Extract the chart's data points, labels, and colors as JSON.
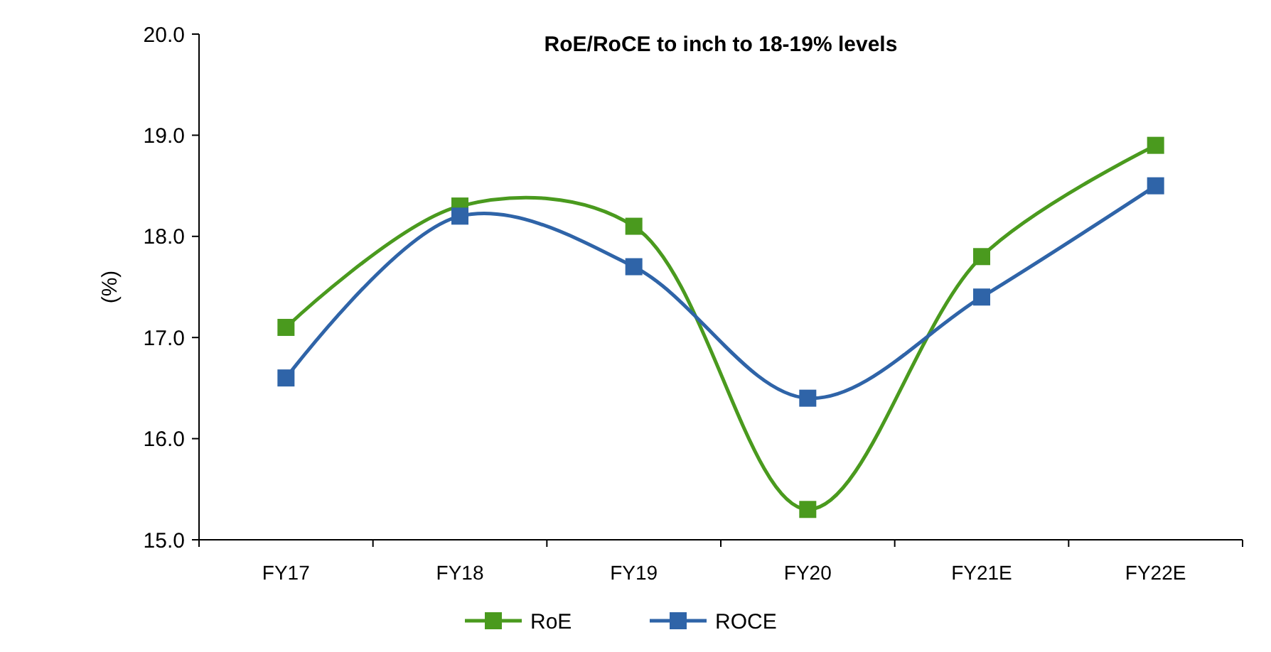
{
  "chart_data": {
    "type": "line",
    "title": "RoE/RoCE to inch to 18-19% levels",
    "ylabel": "(%)",
    "categories": [
      "FY17",
      "FY18",
      "FY19",
      "FY20",
      "FY21E",
      "FY22E"
    ],
    "series": [
      {
        "name": "RoE",
        "color": "#4a9a1e",
        "values": [
          17.1,
          18.3,
          18.1,
          15.3,
          17.8,
          18.9
        ]
      },
      {
        "name": "ROCE",
        "color": "#2f64a8",
        "values": [
          16.6,
          18.2,
          17.7,
          16.4,
          17.4,
          18.5
        ]
      }
    ],
    "ylim": [
      15,
      20
    ],
    "yticks": [
      {
        "value": 15,
        "label": "15.0"
      },
      {
        "value": 16,
        "label": "16.0"
      },
      {
        "value": 17,
        "label": "17.0"
      },
      {
        "value": 18,
        "label": "18.0"
      },
      {
        "value": 19,
        "label": "19.0"
      },
      {
        "value": 20,
        "label": "20.0"
      }
    ],
    "marker": "square",
    "legend": "bottom",
    "grid": false
  }
}
